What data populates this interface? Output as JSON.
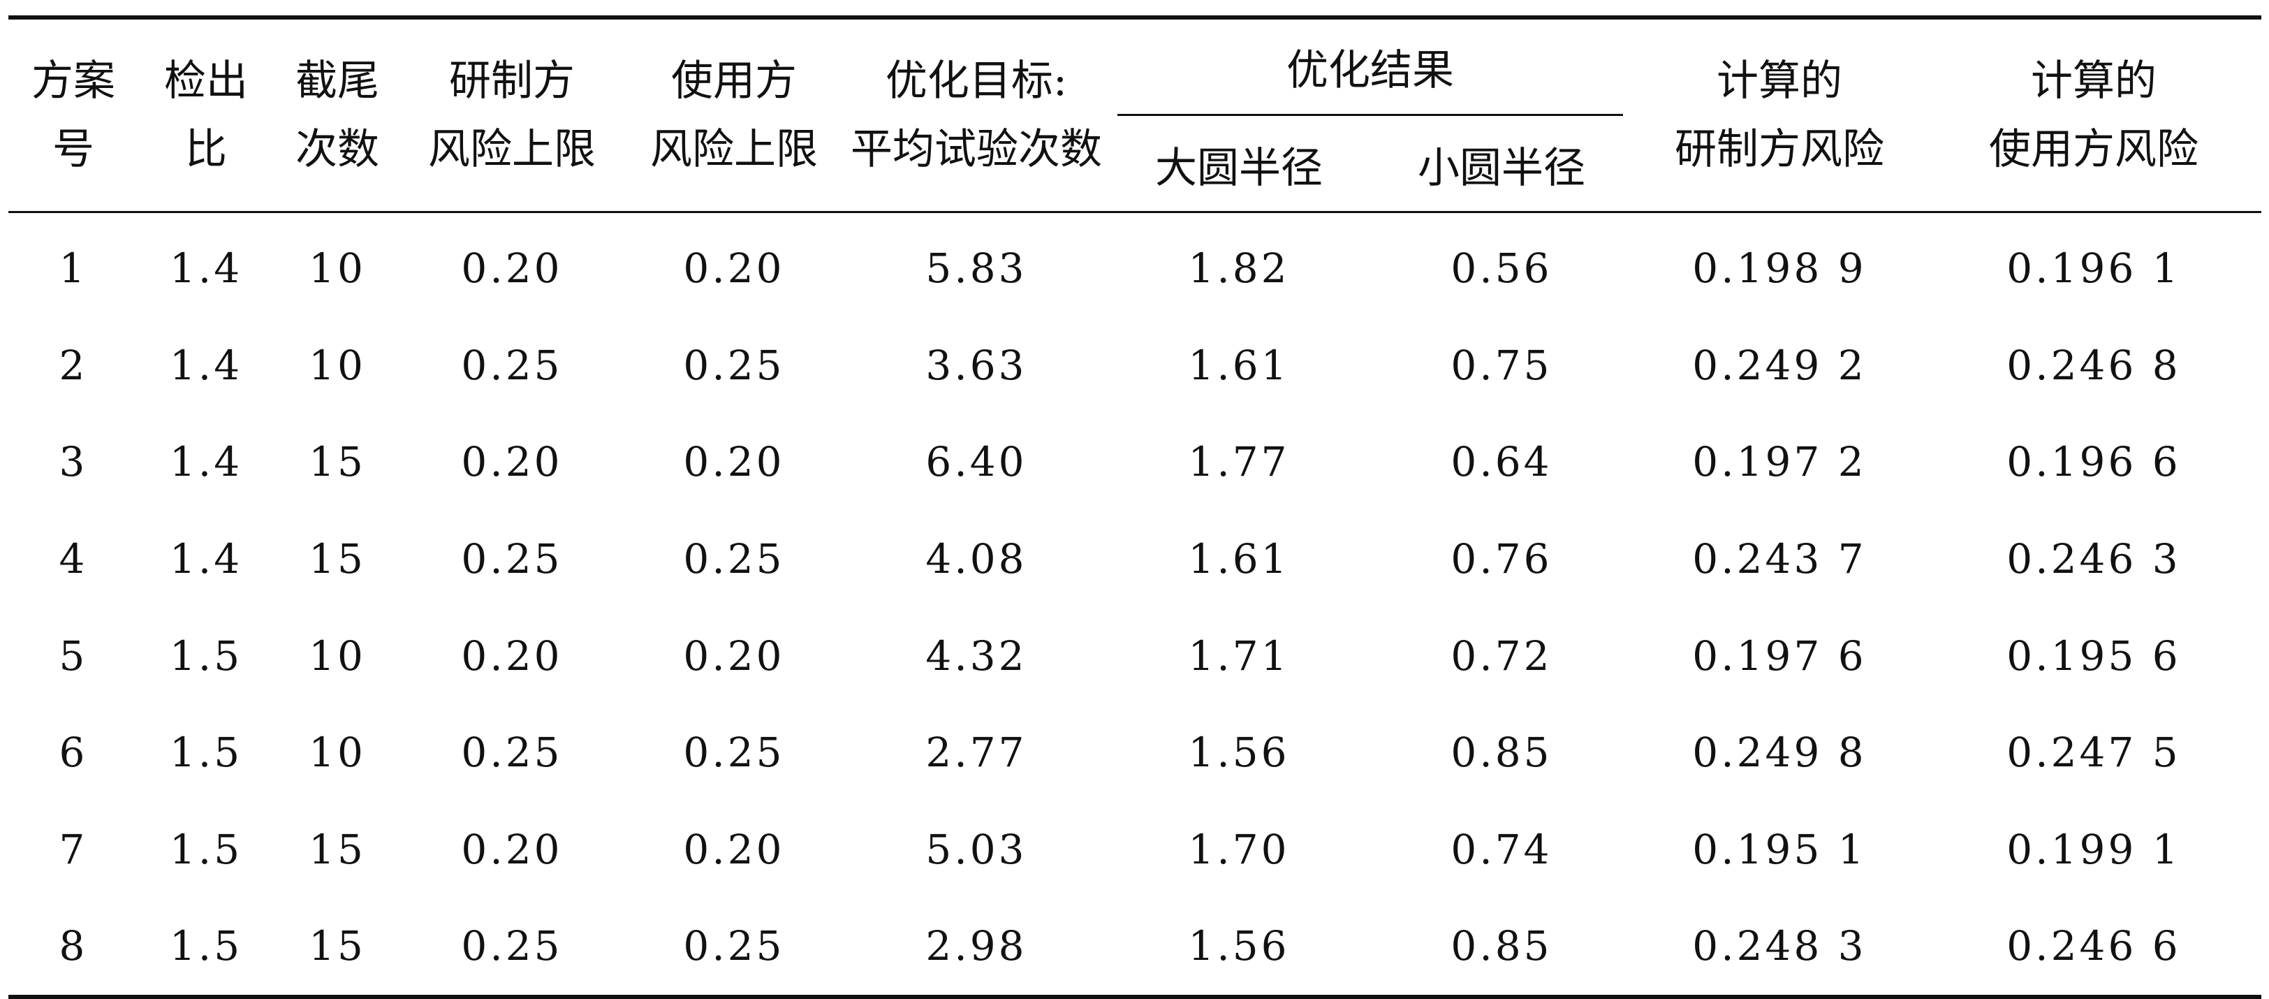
{
  "headers": {
    "scheme_no": [
      "方案",
      "号"
    ],
    "detect_ratio": [
      "检出",
      "比"
    ],
    "truncation": [
      "截尾",
      "次数"
    ],
    "producer_risk_limit": [
      "研制方",
      "风险上限"
    ],
    "consumer_risk_limit": [
      "使用方",
      "风险上限"
    ],
    "objective": [
      "优化目标:",
      "平均试验次数"
    ],
    "result_group": "优化结果",
    "big_radius": "大圆半径",
    "small_radius": "小圆半径",
    "calc_producer_risk": [
      "计算的",
      "研制方风险"
    ],
    "calc_consumer_risk": [
      "计算的",
      "使用方风险"
    ]
  },
  "rows": [
    [
      "1",
      "1.4",
      "10",
      "0.20",
      "0.20",
      "5.83",
      "1.82",
      "0.56",
      "0.198 9",
      "0.196 1"
    ],
    [
      "2",
      "1.4",
      "10",
      "0.25",
      "0.25",
      "3.63",
      "1.61",
      "0.75",
      "0.249 2",
      "0.246 8"
    ],
    [
      "3",
      "1.4",
      "15",
      "0.20",
      "0.20",
      "6.40",
      "1.77",
      "0.64",
      "0.197 2",
      "0.196 6"
    ],
    [
      "4",
      "1.4",
      "15",
      "0.25",
      "0.25",
      "4.08",
      "1.61",
      "0.76",
      "0.243 7",
      "0.246 3"
    ],
    [
      "5",
      "1.5",
      "10",
      "0.20",
      "0.20",
      "4.32",
      "1.71",
      "0.72",
      "0.197 6",
      "0.195 6"
    ],
    [
      "6",
      "1.5",
      "10",
      "0.25",
      "0.25",
      "2.77",
      "1.56",
      "0.85",
      "0.249 8",
      "0.247 5"
    ],
    [
      "7",
      "1.5",
      "15",
      "0.20",
      "0.20",
      "5.03",
      "1.70",
      "0.74",
      "0.195 1",
      "0.199 1"
    ],
    [
      "8",
      "1.5",
      "15",
      "0.25",
      "0.25",
      "2.98",
      "1.56",
      "0.85",
      "0.248 3",
      "0.246 6"
    ]
  ]
}
